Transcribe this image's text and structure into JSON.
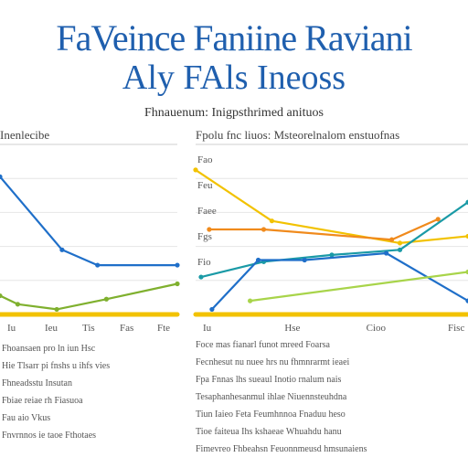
{
  "header": {
    "title_line1": "FaVeince Faniine Raviani",
    "title_line2": "Aly FAls Ineoss",
    "subtitle": "Fhnauenum: Inigpsthrimed anituos"
  },
  "panels": {
    "left_label": "Inenlecibe",
    "right_label": "Fpolu fnc liuos: Msteorelnalom enstuofnas"
  },
  "chart_data": [
    {
      "type": "line",
      "xlim": [
        0,
        10
      ],
      "ylim": [
        0,
        10
      ],
      "grid": true,
      "series": [
        {
          "color": "#1f6fc9",
          "x": [
            0,
            3.5,
            5.5,
            10
          ],
          "y": [
            8.1,
            3.8,
            2.9,
            2.9
          ]
        },
        {
          "color": "#7fb02e",
          "x": [
            0,
            1,
            3.2,
            6,
            10
          ],
          "y": [
            1.1,
            0.6,
            0.3,
            0.9,
            1.8
          ]
        },
        {
          "color": "#f2c200",
          "x": [
            0,
            10
          ],
          "y": [
            0,
            0
          ]
        }
      ],
      "tick_labels_x": [
        "Iu",
        "Ieu",
        "Tis",
        "Fas",
        "Fte"
      ]
    },
    {
      "type": "line",
      "xlim": [
        0,
        10
      ],
      "ylim": [
        0,
        10
      ],
      "grid": true,
      "series": [
        {
          "color": "#f2c200",
          "x": [
            0,
            2.8,
            7.5,
            10
          ],
          "y": [
            8.5,
            5.5,
            4.2,
            4.6
          ]
        },
        {
          "color": "#f08a1c",
          "x": [
            0.5,
            2.5,
            7.2,
            8.9
          ],
          "y": [
            5,
            5,
            4.4,
            5.6
          ]
        },
        {
          "color": "#1a9aa6",
          "x": [
            0.2,
            2.5,
            5,
            7.5,
            10
          ],
          "y": [
            2.2,
            3.1,
            3.5,
            3.8,
            6.6
          ]
        },
        {
          "color": "#1f6fc9",
          "x": [
            0.6,
            2.3,
            4,
            7,
            10
          ],
          "y": [
            0.3,
            3.2,
            3.2,
            3.6,
            0.8
          ]
        },
        {
          "color": "#a8d44a",
          "x": [
            2,
            10
          ],
          "y": [
            0.8,
            2.5
          ]
        },
        {
          "color": "#f2c200",
          "x": [
            0,
            10
          ],
          "y": [
            0,
            0
          ]
        }
      ],
      "tick_labels_y": [
        "Fao",
        "Feu",
        "Faee",
        "Fgs",
        "Fio"
      ],
      "tick_labels_x": [
        "Iu",
        "Hse",
        "Cioo",
        "Fisc"
      ]
    }
  ],
  "text_left": [
    "Fhoansaen pro ln iun Hsc",
    "Hie Tlsarr pi fnshs u ihfs vies",
    "Fhneadsstu Insutan",
    "Fbiae reiae rh Fiasuoa",
    "Fau aio Vkus",
    "Fnvrnnos ie taoe Fthotaes"
  ],
  "text_right": [
    "Foce mas fianarl funot mreed Foarsa",
    "Fecnhesut nu nuee hrs nu fhmnrarmt ieaei",
    "Fpa Fnnas lhs sueaul Inotio rnalum nais",
    "Tesaphanhesanmul ihlae Niuennsteuhdna",
    "Tiun Iaieo Feta Feumhnnoa Fnaduu heso",
    "Tioe faiteua Ihs kshaeae Whuahdu hanu",
    "Fimevreo Fhbeahsn Feuonnmeusd hmsunaiens"
  ]
}
